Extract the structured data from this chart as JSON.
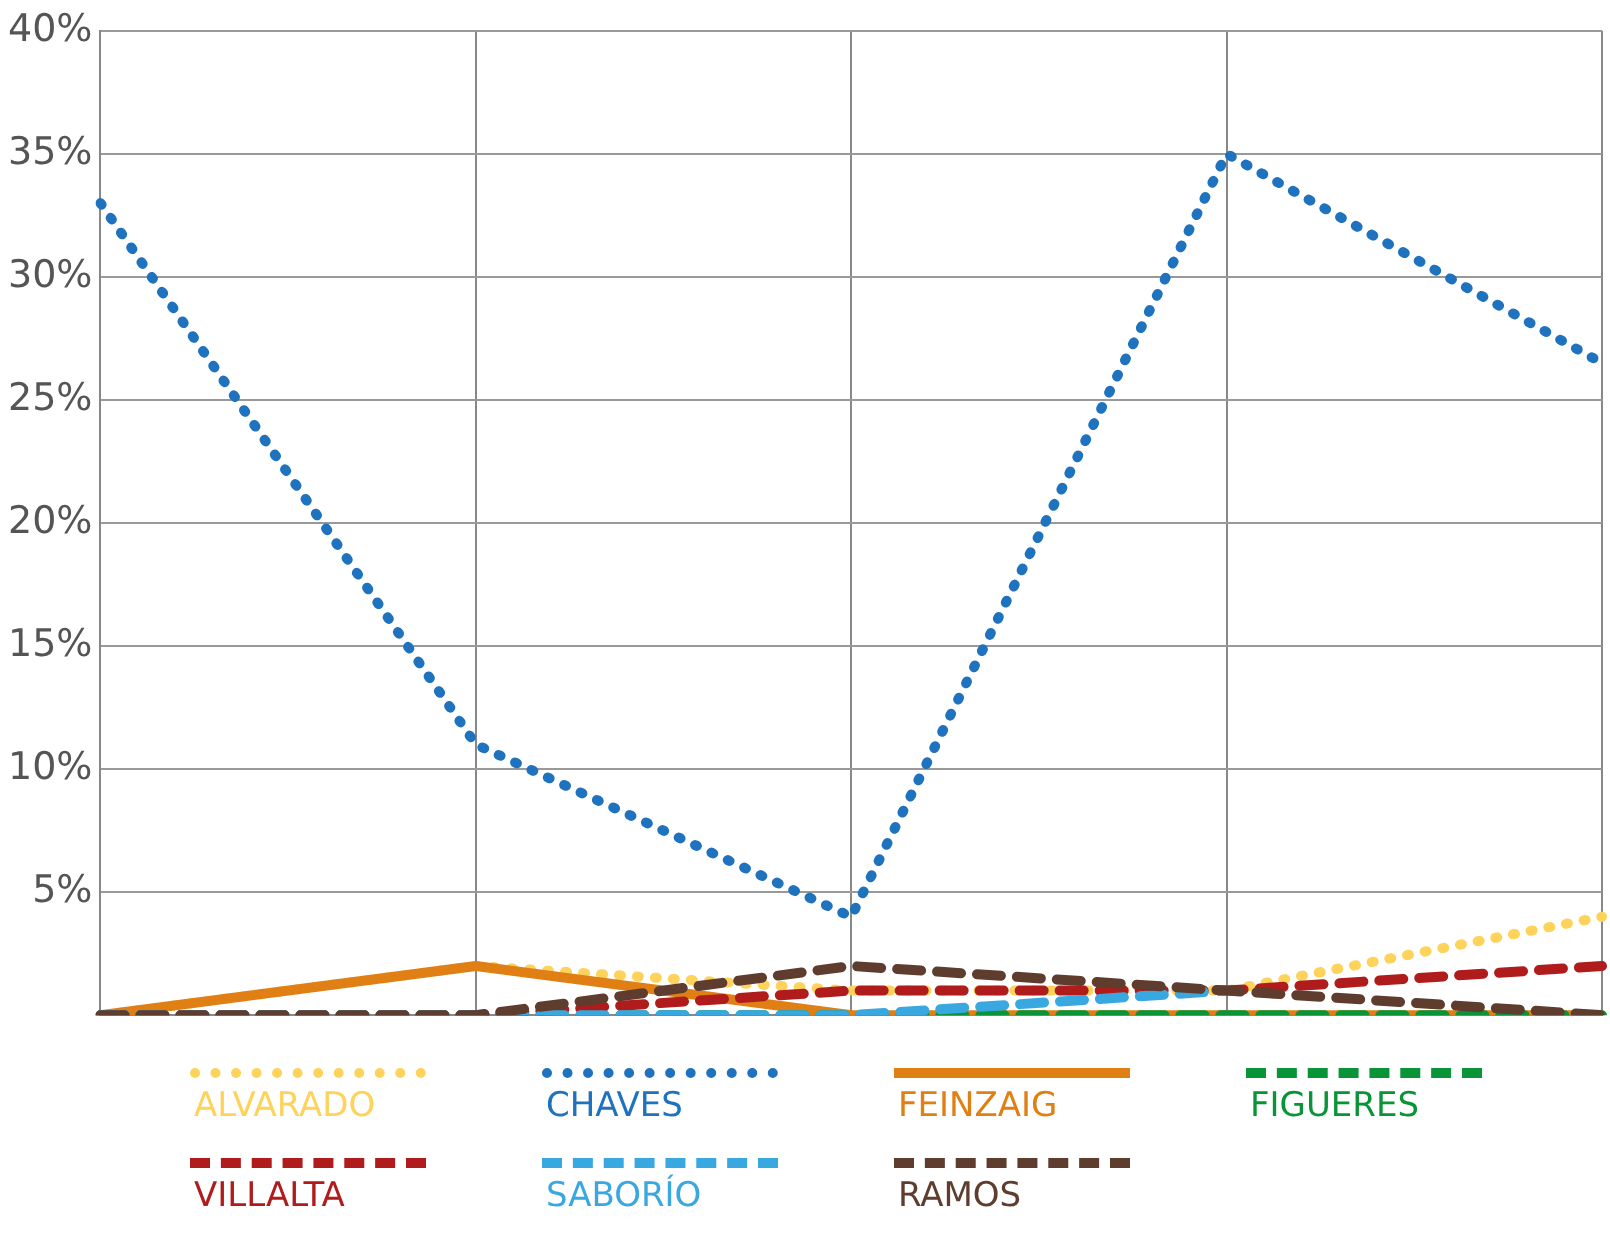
{
  "chart_data": {
    "type": "line",
    "categories": [
      null,
      null,
      null,
      null,
      null
    ],
    "ylim": [
      0,
      40
    ],
    "yticks": [
      {
        "value": 0,
        "label": null
      },
      {
        "value": 5,
        "label": "5%"
      },
      {
        "value": 10,
        "label": "10%"
      },
      {
        "value": 15,
        "label": "15%"
      },
      {
        "value": 20,
        "label": "20%"
      },
      {
        "value": 25,
        "label": "25%"
      },
      {
        "value": 30,
        "label": "30%"
      },
      {
        "value": 35,
        "label": "35%"
      },
      {
        "value": 40,
        "label": "40%"
      }
    ],
    "grid": true,
    "legend": "bottom",
    "marker": "none",
    "series": [
      {
        "name": "ALVARADO",
        "color": "#fdd35b",
        "line_style": "dotted",
        "values": [
          0,
          2,
          1,
          1,
          4
        ]
      },
      {
        "name": "CHAVES",
        "color": "#1f72be",
        "line_style": "dotted",
        "values": [
          33,
          11,
          4,
          35,
          26.5
        ]
      },
      {
        "name": "FEINZAIG",
        "color": "#e07f14",
        "line_style": "solid",
        "values": [
          0,
          2,
          0,
          0,
          0
        ]
      },
      {
        "name": "FIGUERES",
        "color": "#0a9438",
        "line_style": "dashed",
        "values": [
          0,
          0,
          0,
          0,
          0
        ]
      },
      {
        "name": "VILLALTA",
        "color": "#b01b1b",
        "line_style": "dashed",
        "values": [
          0,
          0,
          1,
          1,
          2
        ]
      },
      {
        "name": "SABORÍO",
        "color": "#3aa8e0",
        "line_style": "dashed",
        "values": [
          0,
          0,
          0,
          1,
          null
        ]
      },
      {
        "name": "RAMOS",
        "color": "#5e3c2e",
        "line_style": "dashed",
        "values": [
          0,
          0,
          2,
          1,
          0
        ]
      }
    ]
  }
}
